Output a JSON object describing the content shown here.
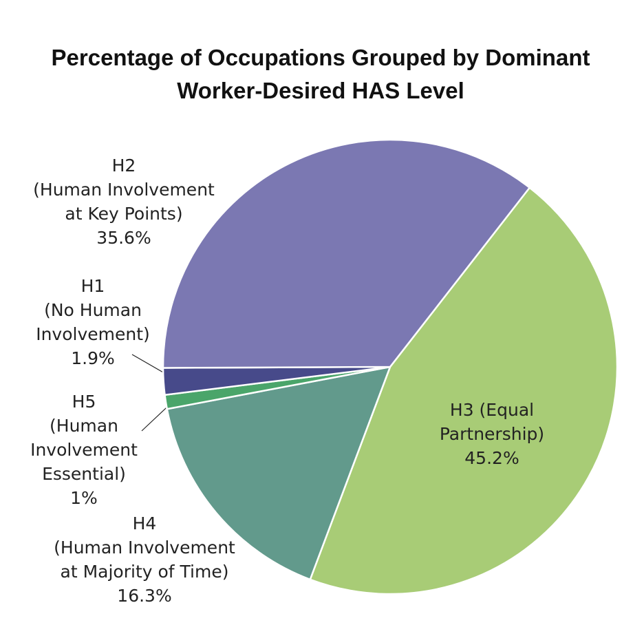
{
  "chart_data": {
    "type": "pie",
    "title": "Percentage of Occupations Grouped by Dominant Worker-Desired HAS Level",
    "categories": [
      "H3 (Equal Partnership)",
      "H4\n(Human Involvement\nat Majority of Time)",
      "H5\n(Human\nInvolvement\nEssential)",
      "H1\n(No Human\nInvolvement)",
      "H2\n(Human Involvement\nat Key Points)"
    ],
    "values": [
      45.2,
      16.3,
      1,
      1.9,
      35.6
    ],
    "value_labels": [
      "45.2%",
      "16.3%",
      "1%",
      "1.9%",
      "35.6%"
    ],
    "colors": [
      "#a8cc76",
      "#629a8c",
      "#4aa56a",
      "#474a8a",
      "#7b78b2"
    ]
  }
}
